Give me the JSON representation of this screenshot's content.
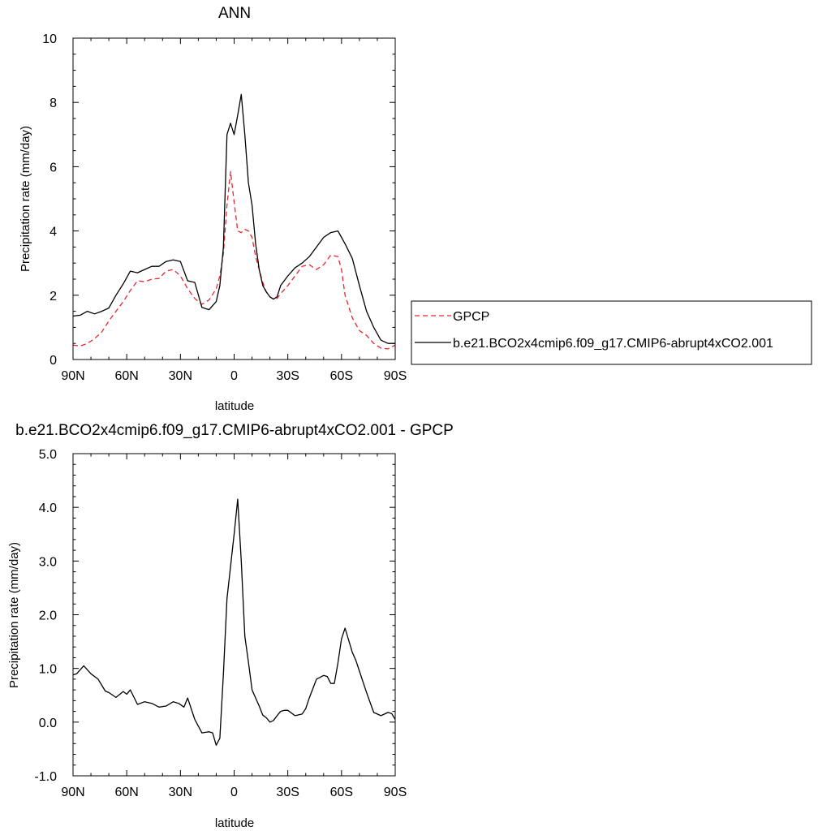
{
  "chart_data": [
    {
      "type": "line",
      "title": "ANN",
      "xlabel": "latitude",
      "ylabel": "Precipitation rate (mm/day)",
      "xlim": [
        -90,
        90
      ],
      "ylim": [
        0,
        10
      ],
      "x_ticks": [
        -90,
        -60,
        -30,
        0,
        30,
        60,
        90
      ],
      "x_tick_labels": [
        "90N",
        "60N",
        "30N",
        "0",
        "30S",
        "60S",
        "90S"
      ],
      "y_ticks": [
        0,
        2,
        4,
        6,
        8,
        10
      ],
      "y_tick_labels": [
        "0",
        "2",
        "4",
        "6",
        "8",
        "10"
      ],
      "legend": {
        "placement": "right",
        "entries": [
          "GPCP",
          "b.e21.BCO2x4cmip6.f09_g17.CMIP6-abrupt4xCO2.001"
        ]
      },
      "series": [
        {
          "name": "GPCP",
          "color": "#e8262a",
          "dash": "dashed",
          "x": [
            -90,
            -86,
            -82,
            -78,
            -74,
            -70,
            -66,
            -62,
            -58,
            -54,
            -50,
            -46,
            -42,
            -38,
            -34,
            -30,
            -26,
            -22,
            -18,
            -14,
            -10,
            -8,
            -6,
            -4,
            -2,
            0,
            2,
            4,
            6,
            8,
            10,
            12,
            14,
            16,
            18,
            20,
            22,
            24,
            26,
            30,
            34,
            38,
            42,
            46,
            50,
            54,
            58,
            60,
            62,
            66,
            70,
            74,
            78,
            82,
            86,
            90
          ],
          "y": [
            0.45,
            0.42,
            0.5,
            0.65,
            0.85,
            1.2,
            1.5,
            1.8,
            2.15,
            2.45,
            2.42,
            2.5,
            2.52,
            2.75,
            2.8,
            2.6,
            2.2,
            1.9,
            1.72,
            1.85,
            2.2,
            2.6,
            3.3,
            4.8,
            5.85,
            4.9,
            4.0,
            3.95,
            4.05,
            4.0,
            3.8,
            3.2,
            2.8,
            2.4,
            2.1,
            1.95,
            1.88,
            1.9,
            2.05,
            2.3,
            2.6,
            2.9,
            2.95,
            2.8,
            2.95,
            3.25,
            3.2,
            2.8,
            2.0,
            1.3,
            0.9,
            0.75,
            0.5,
            0.35,
            0.33,
            0.45
          ]
        },
        {
          "name": "b.e21.BCO2x4cmip6.f09_g17.CMIP6-abrupt4xCO2.001",
          "color": "#000000",
          "dash": "solid",
          "x": [
            -90,
            -86,
            -82,
            -78,
            -74,
            -70,
            -66,
            -62,
            -58,
            -54,
            -50,
            -46,
            -42,
            -38,
            -34,
            -30,
            -26,
            -22,
            -18,
            -14,
            -10,
            -8,
            -6,
            -4,
            -2,
            0,
            2,
            4,
            6,
            8,
            10,
            12,
            14,
            16,
            18,
            20,
            22,
            24,
            26,
            30,
            34,
            38,
            42,
            46,
            50,
            54,
            58,
            60,
            62,
            66,
            70,
            74,
            78,
            82,
            86,
            90
          ],
          "y": [
            1.35,
            1.38,
            1.5,
            1.42,
            1.5,
            1.6,
            2.0,
            2.35,
            2.75,
            2.7,
            2.8,
            2.9,
            2.9,
            3.05,
            3.1,
            3.05,
            2.45,
            2.4,
            1.62,
            1.55,
            1.8,
            2.3,
            3.5,
            7.0,
            7.35,
            7.0,
            7.6,
            8.25,
            7.0,
            5.5,
            4.8,
            3.6,
            2.8,
            2.3,
            2.1,
            1.95,
            1.88,
            1.95,
            2.3,
            2.6,
            2.85,
            3.0,
            3.2,
            3.5,
            3.8,
            3.95,
            4.0,
            3.8,
            3.6,
            3.15,
            2.3,
            1.5,
            1.0,
            0.6,
            0.5,
            0.5
          ]
        }
      ]
    },
    {
      "type": "line",
      "title": "b.e21.BCO2x4cmip6.f09_g17.CMIP6-abrupt4xCO2.001 - GPCP",
      "xlabel": "latitude",
      "ylabel": "Precipitation rate (mm/day)",
      "xlim": [
        -90,
        90
      ],
      "ylim": [
        -1,
        5
      ],
      "x_ticks": [
        -90,
        -60,
        -30,
        0,
        30,
        60,
        90
      ],
      "x_tick_labels": [
        "90N",
        "60N",
        "30N",
        "0",
        "30S",
        "60S",
        "90S"
      ],
      "y_ticks": [
        -1,
        0,
        1,
        2,
        3,
        4,
        5
      ],
      "y_tick_labels": [
        "-1.0",
        "0.0",
        "1.0",
        "2.0",
        "3.0",
        "4.0",
        "5.0"
      ],
      "series": [
        {
          "color": "#000000",
          "dash": "solid",
          "x": [
            -90,
            -88,
            -84,
            -80,
            -76,
            -72,
            -70,
            -66,
            -62,
            -60,
            -58,
            -54,
            -50,
            -46,
            -42,
            -38,
            -34,
            -31,
            -28,
            -26,
            -22,
            -18,
            -14,
            -12,
            -10,
            -8,
            -6,
            -4,
            -2,
            0,
            2,
            4,
            6,
            8,
            10,
            12,
            14,
            16,
            18,
            20,
            22,
            24,
            26,
            28,
            30,
            34,
            38,
            40,
            42,
            46,
            50,
            52,
            54,
            56,
            58,
            60,
            62,
            66,
            68,
            70,
            74,
            78,
            82,
            86,
            88,
            90
          ],
          "y": [
            0.88,
            0.9,
            1.05,
            0.9,
            0.8,
            0.58,
            0.55,
            0.46,
            0.57,
            0.52,
            0.6,
            0.33,
            0.38,
            0.35,
            0.28,
            0.3,
            0.38,
            0.35,
            0.28,
            0.45,
            0.05,
            -0.2,
            -0.18,
            -0.2,
            -0.43,
            -0.3,
            0.9,
            2.3,
            2.9,
            3.5,
            4.15,
            3.0,
            1.6,
            1.12,
            0.6,
            0.45,
            0.3,
            0.13,
            0.08,
            0.0,
            0.03,
            0.12,
            0.2,
            0.22,
            0.22,
            0.12,
            0.15,
            0.25,
            0.45,
            0.8,
            0.87,
            0.85,
            0.72,
            0.72,
            1.1,
            1.55,
            1.75,
            1.3,
            1.15,
            0.95,
            0.55,
            0.18,
            0.12,
            0.18,
            0.16,
            0.05
          ]
        }
      ]
    }
  ]
}
